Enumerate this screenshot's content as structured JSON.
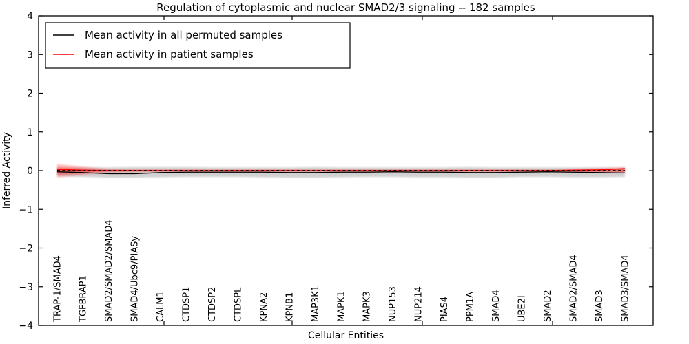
{
  "chart_data": {
    "type": "line",
    "title": "Regulation of cytoplasmic and nuclear SMAD2/3 signaling -- 182 samples",
    "xlabel": "Cellular Entities",
    "ylabel": "Inferred Activity",
    "ylim": [
      -4,
      4
    ],
    "grid": false,
    "legend_position": "upper-left",
    "yticks": [
      {
        "label": "4",
        "value": 4
      },
      {
        "label": "3",
        "value": 3
      },
      {
        "label": "2",
        "value": 2
      },
      {
        "label": "1",
        "value": 1
      },
      {
        "label": "0",
        "value": 0
      },
      {
        "label": "−1",
        "value": -1
      },
      {
        "label": "−2",
        "value": -2
      },
      {
        "label": "−3",
        "value": -3
      },
      {
        "label": "−4",
        "value": -4
      }
    ],
    "categories": [
      "TRAP-1/SMAD4",
      "TGFBRAP1",
      "SMAD2/SMAD2/SMAD4",
      "SMAD4/Ubc9/PIASy",
      "CALM1",
      "CTDSP1",
      "CTDSP2",
      "CTDSPL",
      "KPNA2",
      "KPNB1",
      "MAP3K1",
      "MAPK1",
      "MAPK3",
      "NUP153",
      "NUP214",
      "PIAS4",
      "PPM1A",
      "SMAD4",
      "UBE2I",
      "SMAD2",
      "SMAD2/SMAD4",
      "SMAD3",
      "SMAD3/SMAD4"
    ],
    "series": [
      {
        "name": "Mean activity in all permuted samples",
        "color": "#000000",
        "style": "solid",
        "values": [
          -0.03,
          -0.05,
          -0.08,
          -0.08,
          -0.05,
          -0.04,
          -0.04,
          -0.04,
          -0.04,
          -0.05,
          -0.05,
          -0.04,
          -0.04,
          -0.03,
          -0.04,
          -0.04,
          -0.05,
          -0.05,
          -0.04,
          -0.03,
          -0.04,
          -0.05,
          -0.06
        ]
      },
      {
        "name": "Mean activity in patient samples",
        "color": "#ff0000",
        "style": "solid",
        "values": [
          0.03,
          0.01,
          0.0,
          0.0,
          0.0,
          0.0,
          0.0,
          0.0,
          0.0,
          0.0,
          0.0,
          0.0,
          0.0,
          0.0,
          0.0,
          0.0,
          0.0,
          0.0,
          0.0,
          0.0,
          0.01,
          0.02,
          0.05
        ]
      }
    ],
    "reference_line": {
      "value": 0,
      "color": "#000000",
      "style": "dashed"
    },
    "bands": [
      {
        "name": "permuted-confidence-band",
        "color": "#999999",
        "opacity": 0.45,
        "upper": [
          0.07,
          0.08,
          0.08,
          0.09,
          0.09,
          0.09,
          0.08,
          0.08,
          0.08,
          0.08,
          0.09,
          0.08,
          0.08,
          0.08,
          0.08,
          0.08,
          0.09,
          0.08,
          0.08,
          0.08,
          0.08,
          0.08,
          0.07
        ],
        "lower": [
          -0.14,
          -0.16,
          -0.18,
          -0.18,
          -0.17,
          -0.16,
          -0.16,
          -0.16,
          -0.17,
          -0.18,
          -0.18,
          -0.17,
          -0.16,
          -0.16,
          -0.17,
          -0.17,
          -0.18,
          -0.18,
          -0.16,
          -0.16,
          -0.17,
          -0.17,
          -0.16
        ]
      },
      {
        "name": "patient-confidence-band-outer",
        "color": "#ff0000",
        "opacity": 0.25,
        "upper": [
          0.17,
          0.1,
          0.04,
          0.03,
          0.03,
          0.03,
          0.03,
          0.03,
          0.03,
          0.03,
          0.03,
          0.03,
          0.03,
          0.03,
          0.03,
          0.03,
          0.03,
          0.03,
          0.03,
          0.03,
          0.04,
          0.06,
          0.09
        ],
        "lower": [
          -0.17,
          -0.11,
          -0.04,
          -0.03,
          -0.03,
          -0.03,
          -0.03,
          -0.03,
          -0.03,
          -0.03,
          -0.03,
          -0.03,
          -0.03,
          -0.03,
          -0.03,
          -0.03,
          -0.03,
          -0.03,
          -0.03,
          -0.03,
          -0.04,
          -0.05,
          -0.06
        ]
      },
      {
        "name": "patient-confidence-band-inner",
        "color": "#ff0000",
        "opacity": 0.3,
        "upper": [
          0.09,
          0.05,
          0.02,
          0.015,
          0.015,
          0.015,
          0.015,
          0.015,
          0.015,
          0.015,
          0.015,
          0.015,
          0.015,
          0.015,
          0.015,
          0.015,
          0.015,
          0.015,
          0.015,
          0.015,
          0.02,
          0.03,
          0.05
        ],
        "lower": [
          -0.1,
          -0.06,
          -0.02,
          -0.015,
          -0.015,
          -0.015,
          -0.015,
          -0.015,
          -0.015,
          -0.015,
          -0.015,
          -0.015,
          -0.015,
          -0.015,
          -0.015,
          -0.015,
          -0.015,
          -0.015,
          -0.015,
          -0.015,
          -0.02,
          -0.03,
          -0.04
        ]
      }
    ]
  }
}
